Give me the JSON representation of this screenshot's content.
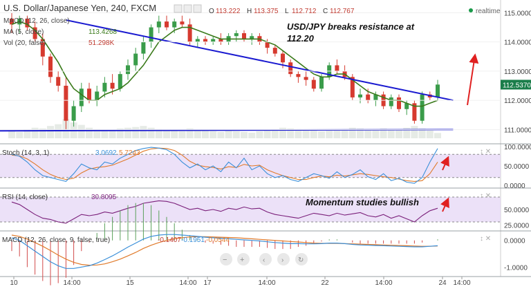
{
  "header": {
    "title": "U.S. Dollar/Japanese Yen, 240, FXCM",
    "ohlc": [
      {
        "label": "O",
        "value": "113.222"
      },
      {
        "label": "H",
        "value": "113.375"
      },
      {
        "label": "L",
        "value": "112.712"
      },
      {
        "label": "C",
        "value": "112.767"
      }
    ],
    "realtime": "realtime",
    "study_labels": [
      {
        "name": "MACD (12, 26, close)",
        "value": ""
      },
      {
        "name": "MA (5, close)",
        "value": "113.4268"
      },
      {
        "name": "Vol (20, false)",
        "value": "51.298K"
      }
    ]
  },
  "annotations": {
    "title_note": [
      "USD/JPY breaks resistance at",
      "112.20"
    ],
    "momentum_note": "Momentum studies bullish"
  },
  "price_axis": {
    "ticks": [
      "115.0000",
      "114.0000",
      "113.0000",
      "112.0000",
      "111.0000"
    ],
    "last_price": "112.5370",
    "last_price_color": "#1a7d4a"
  },
  "time_axis": {
    "ticks": [
      "10",
      "14:00",
      "15",
      "14:00",
      "17",
      "14:00",
      "22",
      "14:00",
      "24",
      "14:00"
    ]
  },
  "stoch": {
    "label": "Stoch (14, 3, 1)",
    "value_k": "3.0692",
    "value_d": "5.7243",
    "ticks": [
      "100.0000",
      "50.0000",
      "0.0000"
    ]
  },
  "rsi": {
    "label": "RSI (14, close)",
    "value": "30.8095",
    "ticks": [
      "50.0000",
      "25.0000"
    ]
  },
  "macd": {
    "label": "MACD (12, 26, close, 9, false, true)",
    "hist": "-0.1407",
    "macd": "-0.1951",
    "signal": "-0.0544",
    "ticks": [
      "0.0000",
      "-1.0000"
    ]
  },
  "colors": {
    "bull": "#3a9c4a",
    "bear": "#d63a2f",
    "ma": "#3a7a1a",
    "trend": "#1a1ad0",
    "arrow": "#e02020",
    "stoch_k": "#3a8fd9",
    "stoch_d": "#e07a2a",
    "rsi_line": "#7a1f7a",
    "band": "#e6d7f5",
    "macd_line": "#3a8fd9",
    "signal_line": "#e07a2a"
  },
  "chart_data": {
    "type": "candlestick",
    "symbol": "U.S. Dollar/Japanese Yen",
    "timeframe": "240",
    "ylim": [
      110.7,
      115.2
    ],
    "candles": [
      [
        114.8,
        115.0,
        114.3,
        114.6
      ],
      [
        114.6,
        114.9,
        114.3,
        114.8
      ],
      [
        114.8,
        114.9,
        114.4,
        114.5
      ],
      [
        114.5,
        114.7,
        114.0,
        114.1
      ],
      [
        114.1,
        114.3,
        113.2,
        113.5
      ],
      [
        113.5,
        113.6,
        112.6,
        112.8
      ],
      [
        112.8,
        113.0,
        112.3,
        112.5
      ],
      [
        112.5,
        112.8,
        111.0,
        111.3
      ],
      [
        111.3,
        112.0,
        111.1,
        111.8
      ],
      [
        111.8,
        112.6,
        111.6,
        112.4
      ],
      [
        112.4,
        112.6,
        111.9,
        112.0
      ],
      [
        112.0,
        112.5,
        111.8,
        112.3
      ],
      [
        112.3,
        112.8,
        112.1,
        112.6
      ],
      [
        112.6,
        112.9,
        112.2,
        112.4
      ],
      [
        112.4,
        113.0,
        112.3,
        112.9
      ],
      [
        112.9,
        113.4,
        112.7,
        113.2
      ],
      [
        113.2,
        113.8,
        113.0,
        113.6
      ],
      [
        113.6,
        114.2,
        113.4,
        114.0
      ],
      [
        114.0,
        114.6,
        113.8,
        114.5
      ],
      [
        114.5,
        114.9,
        114.3,
        114.7
      ],
      [
        114.7,
        114.9,
        114.4,
        114.5
      ],
      [
        114.5,
        114.8,
        114.3,
        114.7
      ],
      [
        114.7,
        114.9,
        114.5,
        114.6
      ],
      [
        114.6,
        114.8,
        113.9,
        114.0
      ],
      [
        114.0,
        114.2,
        113.8,
        114.1
      ],
      [
        114.1,
        114.2,
        113.9,
        114.0
      ],
      [
        114.0,
        114.2,
        113.9,
        114.1
      ],
      [
        114.1,
        114.3,
        113.9,
        114.0
      ],
      [
        114.0,
        114.3,
        113.9,
        114.2
      ],
      [
        114.2,
        114.4,
        114.0,
        114.3
      ],
      [
        114.3,
        114.4,
        114.0,
        114.1
      ],
      [
        114.1,
        114.3,
        113.9,
        114.2
      ],
      [
        114.2,
        114.3,
        113.9,
        114.0
      ],
      [
        114.0,
        114.1,
        113.6,
        113.8
      ],
      [
        113.8,
        113.9,
        113.5,
        113.6
      ],
      [
        113.6,
        113.7,
        113.1,
        113.3
      ],
      [
        113.3,
        113.4,
        112.8,
        112.9
      ],
      [
        112.9,
        113.0,
        112.6,
        112.8
      ],
      [
        112.8,
        113.0,
        112.5,
        112.7
      ],
      [
        112.7,
        112.8,
        112.3,
        112.4
      ],
      [
        112.4,
        112.9,
        112.3,
        112.8
      ],
      [
        112.8,
        113.3,
        112.7,
        113.2
      ],
      [
        113.2,
        113.4,
        112.9,
        113.0
      ],
      [
        113.0,
        113.2,
        112.7,
        112.8
      ],
      [
        112.8,
        112.9,
        112.0,
        112.1
      ],
      [
        112.1,
        112.4,
        111.9,
        112.2
      ],
      [
        112.2,
        112.4,
        111.9,
        112.0
      ],
      [
        112.0,
        112.3,
        111.8,
        112.2
      ],
      [
        112.2,
        112.3,
        111.7,
        111.8
      ],
      [
        111.8,
        112.2,
        111.7,
        112.1
      ],
      [
        112.1,
        112.2,
        111.6,
        111.7
      ],
      [
        111.7,
        112.0,
        111.5,
        111.9
      ],
      [
        111.9,
        112.0,
        111.2,
        111.3
      ],
      [
        111.3,
        112.3,
        111.2,
        112.2
      ],
      [
        112.2,
        112.3,
        112.0,
        112.1
      ],
      [
        112.1,
        112.7,
        112.0,
        112.54
      ]
    ],
    "ma_values": [
      114.6,
      114.7,
      114.6,
      114.4,
      114.1,
      113.7,
      113.3,
      112.8,
      112.4,
      112.2,
      112.0,
      112.0,
      112.2,
      112.3,
      112.4,
      112.6,
      112.9,
      113.2,
      113.6,
      114.0,
      114.2,
      114.4,
      114.5,
      114.5,
      114.4,
      114.3,
      114.2,
      114.1,
      114.1,
      114.1,
      114.1,
      114.1,
      114.1,
      114.0,
      113.9,
      113.7,
      113.5,
      113.3,
      113.1,
      112.9,
      112.8,
      112.8,
      112.9,
      112.9,
      112.7,
      112.5,
      112.3,
      112.2,
      112.1,
      112.0,
      112.0,
      111.9,
      111.8,
      111.8,
      111.9,
      112.0
    ],
    "volume": [
      22,
      18,
      25,
      30,
      28,
      35,
      40,
      55,
      45,
      38,
      30,
      26,
      24,
      22,
      28,
      30,
      32,
      35,
      30,
      26,
      24,
      22,
      20,
      28,
      25,
      22,
      20,
      18,
      22,
      20,
      18,
      16,
      20,
      24,
      26,
      30,
      28,
      26,
      24,
      22,
      20,
      22,
      24,
      26,
      30,
      28,
      26,
      24,
      28,
      26,
      24,
      30,
      35,
      28,
      22,
      15
    ],
    "trendlines": [
      {
        "kind": "resistance",
        "points": [
          [
            7,
            114.75
          ],
          [
            57,
            112.0
          ]
        ]
      },
      {
        "kind": "support",
        "points": [
          [
            -7,
            110.95
          ],
          [
            57,
            111.0
          ]
        ]
      }
    ],
    "stoch_k": [
      80,
      75,
      60,
      40,
      25,
      20,
      15,
      10,
      30,
      55,
      45,
      40,
      60,
      55,
      70,
      80,
      90,
      95,
      98,
      96,
      92,
      80,
      60,
      45,
      55,
      40,
      50,
      35,
      60,
      45,
      70,
      40,
      50,
      30,
      20,
      25,
      15,
      10,
      20,
      30,
      25,
      18,
      35,
      20,
      28,
      40,
      22,
      15,
      30,
      12,
      18,
      8,
      5,
      20,
      60,
      95
    ],
    "stoch_d": [
      78,
      76,
      68,
      55,
      40,
      28,
      20,
      15,
      18,
      32,
      42,
      46,
      48,
      52,
      60,
      68,
      78,
      88,
      94,
      96,
      95,
      90,
      78,
      62,
      52,
      48,
      46,
      42,
      48,
      46,
      54,
      50,
      52,
      40,
      32,
      25,
      20,
      15,
      15,
      20,
      24,
      22,
      26,
      24,
      27,
      30,
      28,
      25,
      22,
      20,
      16,
      12,
      10,
      12,
      30,
      60
    ],
    "rsi": [
      62,
      58,
      50,
      42,
      36,
      34,
      30,
      28,
      35,
      42,
      40,
      42,
      46,
      44,
      48,
      52,
      55,
      60,
      62,
      64,
      63,
      60,
      55,
      50,
      52,
      48,
      50,
      47,
      52,
      50,
      54,
      51,
      52,
      46,
      42,
      40,
      38,
      36,
      40,
      44,
      42,
      40,
      44,
      41,
      43,
      45,
      40,
      38,
      42,
      36,
      40,
      35,
      30,
      40,
      48,
      52
    ],
    "rsi_ylim": [
      20,
      80
    ],
    "macd_line": [
      0.1,
      0.0,
      -0.2,
      -0.4,
      -0.6,
      -0.8,
      -0.95,
      -1.05,
      -1.05,
      -1.0,
      -0.95,
      -0.85,
      -0.72,
      -0.58,
      -0.42,
      -0.25,
      -0.1,
      0.05,
      0.15,
      0.2,
      0.22,
      0.22,
      0.2,
      0.18,
      0.15,
      0.12,
      0.1,
      0.08,
      0.06,
      0.04,
      0.02,
      0.0,
      -0.02,
      -0.05,
      -0.08,
      -0.1,
      -0.12,
      -0.12,
      -0.13,
      -0.13,
      -0.12,
      -0.1,
      -0.1,
      -0.12,
      -0.15,
      -0.17,
      -0.18,
      -0.19,
      -0.2,
      -0.21,
      -0.22,
      -0.23,
      -0.24,
      -0.24,
      -0.22,
      -0.2
    ],
    "signal_line": [
      0.2,
      0.15,
      0.05,
      -0.08,
      -0.22,
      -0.38,
      -0.55,
      -0.7,
      -0.82,
      -0.9,
      -0.93,
      -0.92,
      -0.88,
      -0.8,
      -0.7,
      -0.58,
      -0.45,
      -0.3,
      -0.18,
      -0.08,
      0.0,
      0.06,
      0.1,
      0.13,
      0.14,
      0.14,
      0.13,
      0.12,
      0.11,
      0.1,
      0.08,
      0.06,
      0.04,
      0.02,
      0.0,
      -0.02,
      -0.04,
      -0.06,
      -0.08,
      -0.1,
      -0.11,
      -0.11,
      -0.11,
      -0.12,
      -0.13,
      -0.14,
      -0.15,
      -0.16,
      -0.17,
      -0.18,
      -0.19,
      -0.2,
      -0.21,
      -0.22,
      -0.22,
      -0.21
    ],
    "macd_ylim": [
      -1.25,
      0.2
    ]
  }
}
